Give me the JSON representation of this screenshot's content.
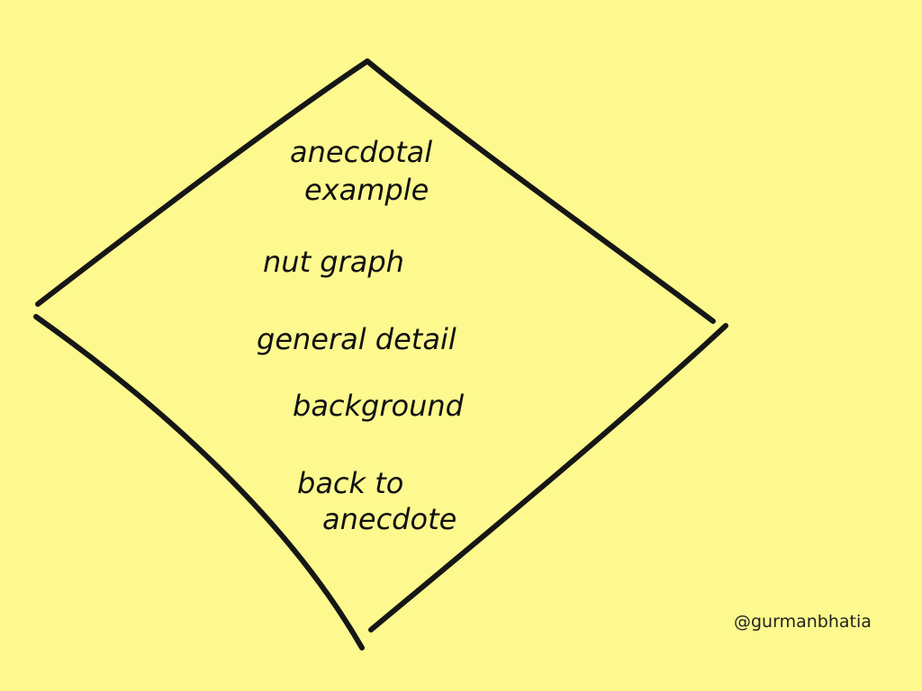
{
  "diagram": {
    "steps": [
      {
        "lines": [
          "anecdotal",
          "example"
        ]
      },
      {
        "lines": [
          "nut graph"
        ]
      },
      {
        "lines": [
          "general detail"
        ]
      },
      {
        "lines": [
          "background"
        ]
      },
      {
        "lines": [
          "back to",
          "anecdote"
        ]
      }
    ]
  },
  "credit": "@gurmanbhatia"
}
